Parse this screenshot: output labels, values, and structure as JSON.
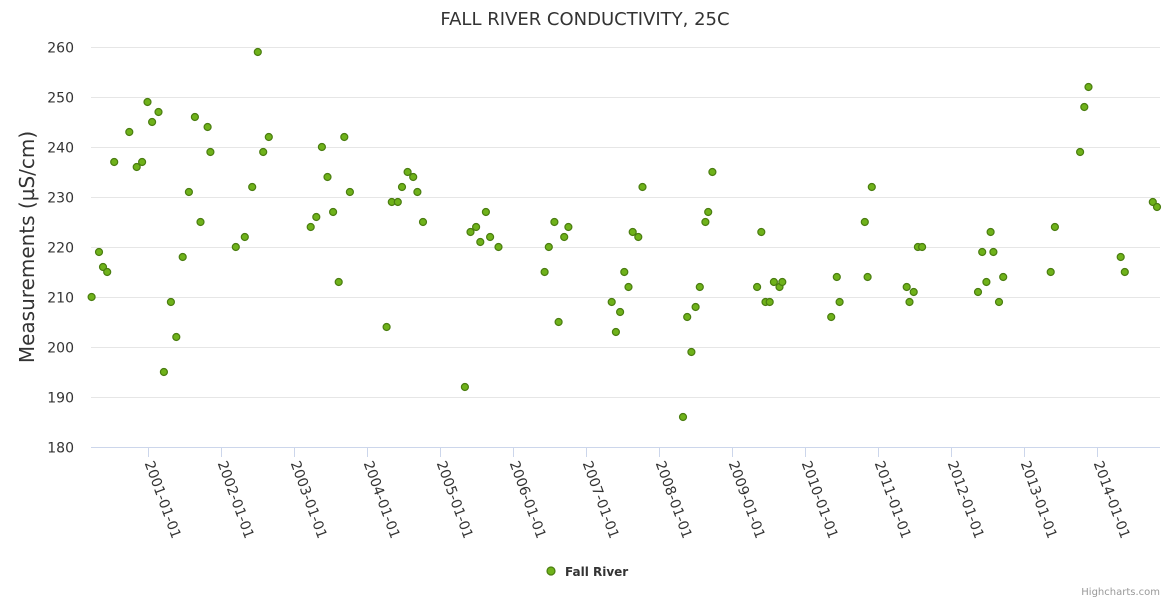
{
  "chart_data": {
    "type": "scatter",
    "title": "FALL RIVER CONDUCTIVITY, 25C",
    "ylabel": "Measurements (µS/cm)",
    "xlabel": "",
    "ylim": [
      180,
      260
    ],
    "xlim": [
      "2000-03-20",
      "2014-11-14"
    ],
    "y_ticks": [
      180,
      190,
      200,
      210,
      220,
      230,
      240,
      250,
      260
    ],
    "x_ticks": [
      "2001-01-01",
      "2002-01-01",
      "2003-01-01",
      "2004-01-01",
      "2005-01-01",
      "2006-01-01",
      "2007-01-01",
      "2008-01-01",
      "2009-01-01",
      "2010-01-01",
      "2011-01-01",
      "2012-01-01",
      "2013-01-01",
      "2014-01-01"
    ],
    "grid": true,
    "legend_position": "bottom-center",
    "series": [
      {
        "name": "Fall River",
        "color": "#6fb21a",
        "stroke": "#4a7d10",
        "points": [
          [
            "2000-03-23",
            210
          ],
          [
            "2000-04-29",
            219
          ],
          [
            "2000-05-19",
            216
          ],
          [
            "2000-06-09",
            215
          ],
          [
            "2000-07-14",
            237
          ],
          [
            "2000-09-28",
            243
          ],
          [
            "2000-11-04",
            236
          ],
          [
            "2000-12-01",
            237
          ],
          [
            "2000-12-28",
            249
          ],
          [
            "2001-01-20",
            245
          ],
          [
            "2001-02-21",
            247
          ],
          [
            "2001-03-20",
            195
          ],
          [
            "2001-04-24",
            209
          ],
          [
            "2001-05-21",
            202
          ],
          [
            "2001-06-22",
            218
          ],
          [
            "2001-07-23",
            231
          ],
          [
            "2001-08-22",
            246
          ],
          [
            "2001-09-19",
            225
          ],
          [
            "2001-10-25",
            244
          ],
          [
            "2001-11-08",
            239
          ],
          [
            "2002-03-15",
            220
          ],
          [
            "2002-04-29",
            222
          ],
          [
            "2002-06-05",
            232
          ],
          [
            "2002-07-03",
            259
          ],
          [
            "2002-07-30",
            239
          ],
          [
            "2002-08-27",
            242
          ],
          [
            "2003-03-25",
            224
          ],
          [
            "2003-04-22",
            226
          ],
          [
            "2003-05-20",
            240
          ],
          [
            "2003-06-17",
            234
          ],
          [
            "2003-07-15",
            227
          ],
          [
            "2003-08-12",
            213
          ],
          [
            "2003-09-09",
            242
          ],
          [
            "2003-10-07",
            231
          ],
          [
            "2004-04-08",
            204
          ],
          [
            "2004-05-04",
            229
          ],
          [
            "2004-06-03",
            229
          ],
          [
            "2004-06-24",
            232
          ],
          [
            "2004-07-22",
            235
          ],
          [
            "2004-08-19",
            234
          ],
          [
            "2004-09-09",
            231
          ],
          [
            "2004-10-07",
            225
          ],
          [
            "2005-05-05",
            192
          ],
          [
            "2005-06-02",
            223
          ],
          [
            "2005-06-30",
            224
          ],
          [
            "2005-07-21",
            221
          ],
          [
            "2005-08-18",
            227
          ],
          [
            "2005-09-08",
            222
          ],
          [
            "2005-10-20",
            220
          ],
          [
            "2006-06-08",
            215
          ],
          [
            "2006-06-29",
            220
          ],
          [
            "2006-07-27",
            225
          ],
          [
            "2006-08-17",
            205
          ],
          [
            "2006-09-14",
            222
          ],
          [
            "2006-10-05",
            224
          ],
          [
            "2007-05-10",
            209
          ],
          [
            "2007-05-31",
            203
          ],
          [
            "2007-06-21",
            207
          ],
          [
            "2007-07-12",
            215
          ],
          [
            "2007-08-02",
            212
          ],
          [
            "2007-08-23",
            223
          ],
          [
            "2007-09-20",
            222
          ],
          [
            "2007-10-11",
            232
          ],
          [
            "2008-05-01",
            186
          ],
          [
            "2008-05-22",
            206
          ],
          [
            "2008-06-12",
            199
          ],
          [
            "2008-07-03",
            208
          ],
          [
            "2008-07-24",
            212
          ],
          [
            "2008-08-21",
            225
          ],
          [
            "2008-09-04",
            227
          ],
          [
            "2008-09-25",
            235
          ],
          [
            "2009-05-07",
            212
          ],
          [
            "2009-05-28",
            223
          ],
          [
            "2009-06-18",
            209
          ],
          [
            "2009-07-09",
            209
          ],
          [
            "2009-07-30",
            213
          ],
          [
            "2009-08-27",
            212
          ],
          [
            "2009-09-10",
            213
          ],
          [
            "2010-05-13",
            206
          ],
          [
            "2010-06-10",
            214
          ],
          [
            "2010-06-24",
            209
          ],
          [
            "2010-10-28",
            225
          ],
          [
            "2010-11-11",
            214
          ],
          [
            "2010-12-02",
            232
          ],
          [
            "2011-05-26",
            212
          ],
          [
            "2011-06-09",
            209
          ],
          [
            "2011-06-30",
            211
          ],
          [
            "2011-07-21",
            220
          ],
          [
            "2011-08-11",
            220
          ],
          [
            "2012-05-17",
            211
          ],
          [
            "2012-06-07",
            219
          ],
          [
            "2012-06-28",
            213
          ],
          [
            "2012-07-19",
            223
          ],
          [
            "2012-08-02",
            219
          ],
          [
            "2012-08-30",
            209
          ],
          [
            "2012-09-20",
            214
          ],
          [
            "2013-05-16",
            215
          ],
          [
            "2013-06-06",
            224
          ],
          [
            "2013-10-10",
            239
          ],
          [
            "2013-10-31",
            248
          ],
          [
            "2013-11-21",
            252
          ],
          [
            "2014-05-01",
            218
          ],
          [
            "2014-05-22",
            215
          ],
          [
            "2014-10-09",
            229
          ],
          [
            "2014-10-30",
            228
          ]
        ]
      }
    ]
  },
  "credits": "Highcharts.com"
}
